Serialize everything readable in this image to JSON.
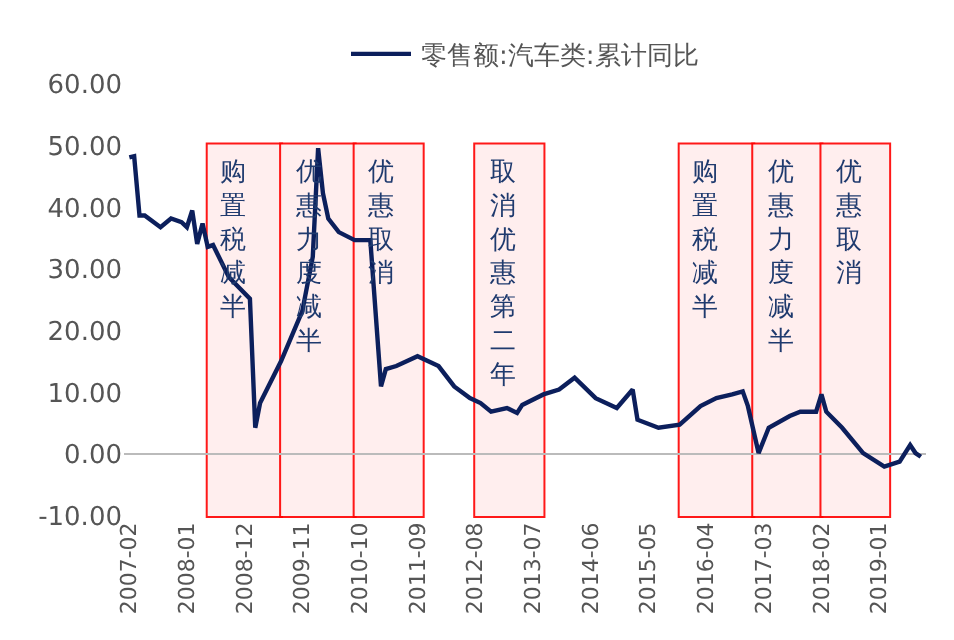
{
  "chart_data": {
    "type": "line",
    "x": [
      "2007-02",
      "2007-03",
      "2007-04",
      "2007-05",
      "2007-08",
      "2007-10",
      "2007-12",
      "2008-01",
      "2008-02",
      "2008-03",
      "2008-04",
      "2008-05",
      "2008-06",
      "2008-07",
      "2008-09",
      "2009-01",
      "2009-02",
      "2009-03",
      "2009-07",
      "2009-11",
      "2010-01",
      "2010-02",
      "2010-03",
      "2010-04",
      "2010-06",
      "2010-09",
      "2010-12",
      "2011-02",
      "2011-03",
      "2011-05",
      "2011-09",
      "2012-01",
      "2012-04",
      "2012-07",
      "2012-09",
      "2012-11",
      "2013-02",
      "2013-04",
      "2013-05",
      "2013-09",
      "2013-12",
      "2014-03",
      "2014-07",
      "2014-11",
      "2015-02",
      "2015-03",
      "2015-07",
      "2015-11",
      "2016-03",
      "2016-06",
      "2016-09",
      "2016-11",
      "2016-12",
      "2017-02",
      "2017-04",
      "2017-08",
      "2017-10",
      "2018-01",
      "2018-02",
      "2018-03",
      "2018-06",
      "2018-10",
      "2019-02",
      "2019-05",
      "2019-07",
      "2019-08",
      "2019-09"
    ],
    "series": [
      {
        "name": "零售额:汽车类:累计同比",
        "color": "#0c1f5c",
        "values": [
          48.1,
          48.3,
          38.7,
          38.7,
          36.8,
          38.2,
          37.6,
          36.8,
          39.5,
          34.1,
          37.4,
          33.6,
          33.9,
          32.2,
          28.7,
          25.2,
          4.3,
          8.3,
          15.1,
          23.2,
          32,
          49.6,
          42.3,
          38.2,
          36,
          34.7,
          34.7,
          11,
          13.8,
          14.3,
          15.9,
          14.3,
          11,
          9.1,
          8.3,
          6.9,
          7.5,
          6.7,
          8.0,
          9.7,
          10.5,
          12.4,
          9.1,
          7.5,
          10.5,
          5.6,
          4.3,
          4.8,
          7.8,
          9.1,
          9.7,
          10.2,
          7.8,
          0.2,
          4.3,
          6.2,
          6.9,
          6.9,
          9.7,
          6.9,
          4.3,
          0.2,
          -2,
          -1.2,
          1.5,
          0.2,
          -0.4
        ]
      }
    ],
    "xlim": [
      "2007-01",
      "2019-10"
    ],
    "xticks": [
      "2007-02",
      "2008-01",
      "2008-12",
      "2009-11",
      "2010-10",
      "2011-09",
      "2012-08",
      "2013-07",
      "2014-06",
      "2015-05",
      "2016-04",
      "2017-03",
      "2018-02",
      "2019-01"
    ],
    "ylim": [
      -10,
      60
    ],
    "yticks": [
      {
        "value": -10,
        "label": "-10.00"
      },
      {
        "value": 0,
        "label": "0.00"
      },
      {
        "value": 10,
        "label": "10.00"
      },
      {
        "value": 20,
        "label": "20.00"
      },
      {
        "value": 30,
        "label": "30.00"
      },
      {
        "value": 40,
        "label": "40.00"
      },
      {
        "value": 50,
        "label": "50.00"
      },
      {
        "value": 60,
        "label": "60.00"
      }
    ],
    "bands": [
      {
        "axis": "x",
        "from": "2008-05",
        "to": "2009-07",
        "label": "购置税减半",
        "color": "#ff0000"
      },
      {
        "axis": "x",
        "from": "2009-07",
        "to": "2010-09",
        "label": "优惠力度减半",
        "color": "#ff0000"
      },
      {
        "axis": "x",
        "from": "2010-09",
        "to": "2011-10",
        "label": "优惠取消",
        "color": "#ff0000"
      },
      {
        "axis": "x",
        "from": "2012-08",
        "to": "2013-09",
        "label": "取消优惠第二年",
        "color": "#ff0000"
      },
      {
        "axis": "x",
        "from": "2015-11",
        "to": "2017-01",
        "label": "购置税减半",
        "color": "#ff0000"
      },
      {
        "axis": "x",
        "from": "2017-01",
        "to": "2018-02",
        "label": "优惠力度减半",
        "color": "#ff0000"
      },
      {
        "axis": "x",
        "from": "2018-02",
        "to": "2019-03",
        "label": "优惠取消",
        "color": "#ff0000"
      }
    ],
    "legend": "top",
    "line_style": "solid",
    "marker": "none"
  }
}
